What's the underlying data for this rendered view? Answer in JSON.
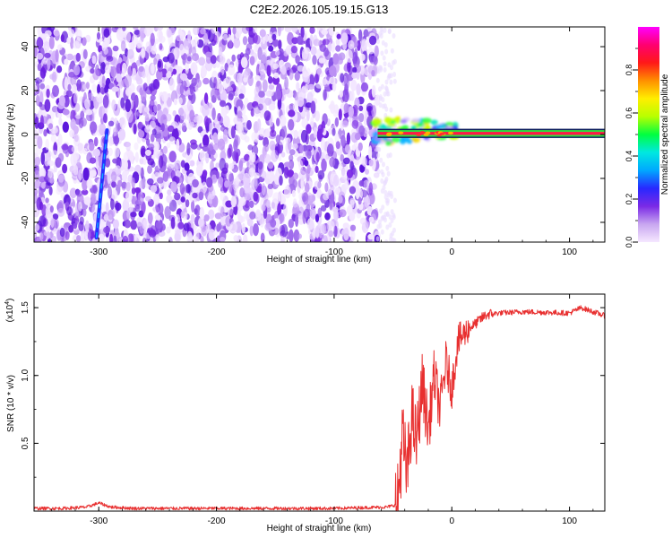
{
  "figure": {
    "title": "C2E2.2026.105.19.15.G13"
  },
  "chart_data": [
    {
      "type": "heatmap",
      "xlabel": "Height of straight line (km)",
      "ylabel": "Frequency (Hz)",
      "xlim": [
        -355,
        130
      ],
      "ylim": [
        -49,
        49
      ],
      "xticks": [
        -300,
        -200,
        -100,
        0,
        100
      ],
      "yticks": [
        -40,
        -20,
        0,
        20,
        40
      ],
      "grid": false,
      "scatter_region": {
        "x": [
          -355,
          -63
        ],
        "y": [
          -49,
          49
        ]
      },
      "streak": {
        "x_start": -302,
        "y_start": -47,
        "x_end": -293,
        "y_end": 2
      },
      "signal_line": {
        "x_start": -63,
        "x_end": 130,
        "y": 0.5,
        "width_hz": 3
      },
      "transition_blob": {
        "x": [
          -66,
          4
        ],
        "y_center": 2,
        "spread_hz": 7
      },
      "colorbar": {
        "label": "Normalized spectral amplitude",
        "range": [
          0,
          1
        ],
        "ticks": [
          0.0,
          0.2,
          0.4,
          0.6,
          0.8
        ],
        "colors": [
          "#f6e8ff",
          "#c8a6f0",
          "#7a2ae6",
          "#2828ff",
          "#00a8ff",
          "#00e8e0",
          "#00ff40",
          "#b8ff00",
          "#ffee00",
          "#ff9000",
          "#ff1818",
          "#ff0070",
          "#ff00ff"
        ]
      }
    },
    {
      "type": "line",
      "xlabel": "Height of straight line (km)",
      "ylabel": "SNR (10 * v/v)",
      "scale_label": "(x10",
      "scale_exp": "4",
      "xlim": [
        -355,
        130
      ],
      "ylim": [
        0,
        1.6
      ],
      "xticks": [
        -300,
        -200,
        -100,
        0,
        100
      ],
      "yticks": [
        0.5,
        1.0,
        1.5
      ],
      "ytick_labels": [
        "0.5",
        "1.0",
        "1.5"
      ],
      "grid": false,
      "color": "#e83030",
      "series": [
        {
          "x": [
            -355,
            -330,
            -310,
            -300,
            -290,
            -270,
            -200,
            -100,
            -55,
            -46,
            -42,
            -38,
            -34,
            -30,
            -25,
            -20,
            -15,
            -10,
            -5,
            0,
            5,
            10,
            15,
            20,
            25,
            30,
            40,
            60,
            100,
            110,
            130
          ],
          "y": [
            0.02,
            0.02,
            0.03,
            0.06,
            0.03,
            0.02,
            0.02,
            0.02,
            0.03,
            0.05,
            0.55,
            0.25,
            0.72,
            0.5,
            0.95,
            0.6,
            1.0,
            0.75,
            1.1,
            0.9,
            1.25,
            1.3,
            1.35,
            1.38,
            1.42,
            1.45,
            1.46,
            1.47,
            1.46,
            1.5,
            1.44
          ]
        }
      ]
    }
  ]
}
